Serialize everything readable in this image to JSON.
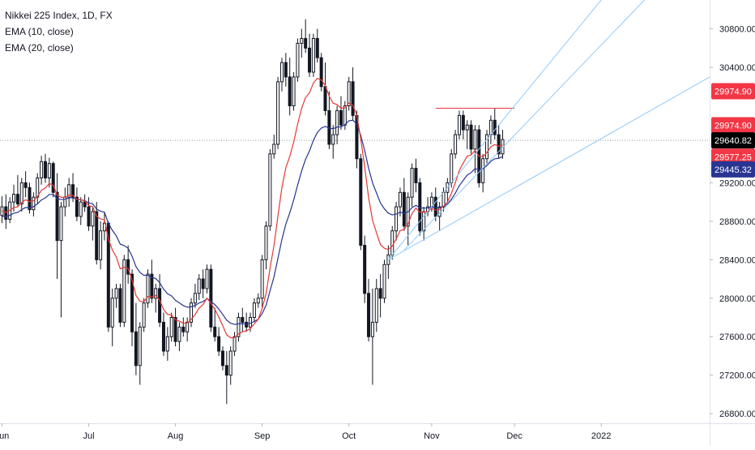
{
  "legend": {
    "title": "Nikkei 225 Index, 1D, FX",
    "ema10": "EMA (10, close)",
    "ema20": "EMA (20, close)"
  },
  "colors": {
    "up_fill": "#ffffff",
    "down_fill": "#131722",
    "candle_outline": "#131722",
    "ema10": "#e53935",
    "ema20": "#283593",
    "trendline": "#90caf9",
    "resistance": "#f23645",
    "last_price_bg": "#000000",
    "red_tag_bg": "#f23645",
    "blue_tag_bg": "#283593"
  },
  "price_tags": [
    {
      "name": "resistance-tag-1",
      "label": "29974.90",
      "value": 29974.9,
      "color": "#f23645",
      "offset": -1
    },
    {
      "name": "resistance-tag-2",
      "label": "29974.90",
      "value": 29974.9,
      "color": "#f23645",
      "offset": 1
    },
    {
      "name": "last-price-tag",
      "label": "29640.82",
      "value": 29640.82,
      "color": "#000000",
      "offset": 0
    },
    {
      "name": "ema10-tag",
      "label": "29577.25",
      "value": 29577.25,
      "color": "#f23645",
      "offset": 0.6
    },
    {
      "name": "ema20-tag",
      "label": "29445.32",
      "value": 29445.32,
      "color": "#283593",
      "offset": 0.6
    }
  ],
  "chart_data": {
    "type": "candlestick",
    "title": "Nikkei 225 Index, 1D, FX",
    "ylim": [
      26700,
      31100
    ],
    "y_ticks": [
      26800,
      27200,
      27600,
      28000,
      28400,
      28800,
      29200,
      30400,
      30800
    ],
    "y_tick_labels": [
      "26800.00",
      "27200.00",
      "27600.00",
      "28000.00",
      "28400.00",
      "28800.00",
      "29200.00",
      "30400.00",
      "30800.00"
    ],
    "x_ticks": [
      {
        "label": "Jun",
        "bar": 0
      },
      {
        "label": "Jul",
        "bar": 22
      },
      {
        "label": "Aug",
        "bar": 44
      },
      {
        "label": "Sep",
        "bar": 66
      },
      {
        "label": "Oct",
        "bar": 88
      },
      {
        "label": "Nov",
        "bar": 109
      },
      {
        "label": "Dec",
        "bar": 130
      },
      {
        "label": "2022",
        "bar": 152
      }
    ],
    "bar_range": [
      -0.5,
      179.5
    ],
    "candles": [
      [
        28860,
        29060,
        28780,
        28950
      ],
      [
        28950,
        29080,
        28720,
        28820
      ],
      [
        28820,
        29050,
        28780,
        29000
      ],
      [
        29000,
        29180,
        28900,
        29080
      ],
      [
        29080,
        29280,
        28950,
        28980
      ],
      [
        28980,
        29250,
        28900,
        29200
      ],
      [
        29200,
        29320,
        29050,
        29150
      ],
      [
        29150,
        29200,
        28880,
        28920
      ],
      [
        28920,
        29100,
        28850,
        29050
      ],
      [
        29050,
        29300,
        28980,
        29250
      ],
      [
        29250,
        29480,
        29180,
        29420
      ],
      [
        29420,
        29500,
        29200,
        29250
      ],
      [
        29250,
        29460,
        29150,
        29400
      ],
      [
        29400,
        29420,
        29050,
        29100
      ],
      [
        29100,
        29300,
        28200,
        28600
      ],
      [
        28600,
        29000,
        27800,
        28950
      ],
      [
        28950,
        29150,
        28850,
        29050
      ],
      [
        29050,
        29250,
        28950,
        29180
      ],
      [
        29180,
        29300,
        29000,
        29050
      ],
      [
        29050,
        29150,
        28800,
        28850
      ],
      [
        28850,
        29050,
        28760,
        29000
      ],
      [
        29000,
        29080,
        28900,
        28950
      ],
      [
        28950,
        29050,
        28700,
        28750
      ],
      [
        28750,
        28950,
        28600,
        28900
      ],
      [
        28900,
        29000,
        28350,
        28400
      ],
      [
        28400,
        28800,
        28300,
        28700
      ],
      [
        28700,
        28900,
        28600,
        28780
      ],
      [
        28780,
        28800,
        27650,
        27700
      ],
      [
        27700,
        28100,
        27500,
        28000
      ],
      [
        28000,
        28150,
        27900,
        28100
      ],
      [
        28100,
        28150,
        27700,
        27750
      ],
      [
        27750,
        28450,
        27700,
        28400
      ],
      [
        28400,
        28550,
        28150,
        28250
      ],
      [
        28250,
        28300,
        27500,
        27650
      ],
      [
        27650,
        27950,
        27200,
        27300
      ],
      [
        27300,
        27750,
        27100,
        27700
      ],
      [
        27700,
        28000,
        27650,
        27950
      ],
      [
        27950,
        28300,
        27900,
        28250
      ],
      [
        28250,
        28400,
        27950,
        28000
      ],
      [
        28000,
        28150,
        27850,
        28100
      ],
      [
        28100,
        28250,
        27700,
        27750
      ],
      [
        27750,
        27850,
        27400,
        27450
      ],
      [
        27450,
        27700,
        27350,
        27600
      ],
      [
        27600,
        27850,
        27550,
        27800
      ],
      [
        27800,
        27900,
        27500,
        27550
      ],
      [
        27550,
        27750,
        27450,
        27700
      ],
      [
        27700,
        27800,
        27600,
        27650
      ],
      [
        27650,
        27800,
        27550,
        27750
      ],
      [
        27750,
        28000,
        27700,
        27950
      ],
      [
        27950,
        28150,
        27900,
        28050
      ],
      [
        28050,
        28250,
        27980,
        28200
      ],
      [
        28200,
        28300,
        28000,
        28100
      ],
      [
        28100,
        28350,
        28050,
        28300
      ],
      [
        28300,
        28350,
        27650,
        27700
      ],
      [
        27700,
        27900,
        27550,
        27600
      ],
      [
        27600,
        27700,
        27400,
        27450
      ],
      [
        27450,
        27500,
        27250,
        27300
      ],
      [
        27300,
        27450,
        26900,
        27200
      ],
      [
        27200,
        27500,
        27100,
        27450
      ],
      [
        27450,
        27650,
        27400,
        27600
      ],
      [
        27600,
        27850,
        27550,
        27800
      ],
      [
        27800,
        27900,
        27650,
        27750
      ],
      [
        27750,
        27850,
        27650,
        27700
      ],
      [
        27700,
        27850,
        27650,
        27800
      ],
      [
        27800,
        28000,
        27750,
        27950
      ],
      [
        27950,
        28050,
        27900,
        28000
      ],
      [
        28000,
        28450,
        27900,
        28400
      ],
      [
        28400,
        28800,
        28300,
        28750
      ],
      [
        28750,
        29550,
        28700,
        29500
      ],
      [
        29500,
        29700,
        29450,
        29600
      ],
      [
        29600,
        30300,
        29550,
        30250
      ],
      [
        30250,
        30500,
        30150,
        30450
      ],
      [
        30450,
        30550,
        30200,
        30300
      ],
      [
        30300,
        30500,
        29900,
        30000
      ],
      [
        30000,
        30350,
        29950,
        30300
      ],
      [
        30300,
        30700,
        30250,
        30650
      ],
      [
        30650,
        30800,
        30500,
        30700
      ],
      [
        30700,
        30900,
        30550,
        30600
      ],
      [
        30600,
        30750,
        30300,
        30350
      ],
      [
        30350,
        30750,
        30300,
        30700
      ],
      [
        30700,
        30800,
        30450,
        30500
      ],
      [
        30500,
        30550,
        30150,
        30200
      ],
      [
        30200,
        30450,
        29900,
        29950
      ],
      [
        29950,
        30150,
        29550,
        29600
      ],
      [
        29600,
        29800,
        29450,
        29700
      ],
      [
        29700,
        30000,
        29600,
        29950
      ],
      [
        29950,
        30100,
        29750,
        29800
      ],
      [
        29800,
        30050,
        29750,
        30000
      ],
      [
        30000,
        30300,
        29950,
        30250
      ],
      [
        30250,
        30400,
        29850,
        29900
      ],
      [
        29900,
        29950,
        29350,
        29450
      ],
      [
        29450,
        29500,
        28500,
        28550
      ],
      [
        28550,
        28650,
        27950,
        28050
      ],
      [
        28050,
        28200,
        27550,
        27600
      ],
      [
        27600,
        28100,
        27100,
        27750
      ],
      [
        27750,
        28200,
        27650,
        28100
      ],
      [
        28100,
        28250,
        27800,
        28000
      ],
      [
        28000,
        28400,
        27950,
        28350
      ],
      [
        28350,
        28550,
        28200,
        28450
      ],
      [
        28450,
        28750,
        28400,
        28700
      ],
      [
        28700,
        29000,
        28600,
        28950
      ],
      [
        28950,
        29150,
        28850,
        29100
      ],
      [
        29100,
        29250,
        28700,
        28750
      ],
      [
        28750,
        29100,
        28550,
        29050
      ],
      [
        29050,
        29400,
        28950,
        29350
      ],
      [
        29350,
        29450,
        29100,
        29200
      ],
      [
        29200,
        29250,
        28650,
        28700
      ],
      [
        28700,
        28950,
        28600,
        28900
      ],
      [
        28900,
        29050,
        28850,
        28950
      ],
      [
        28950,
        29100,
        28900,
        29050
      ],
      [
        29050,
        29150,
        28800,
        28850
      ],
      [
        28850,
        29000,
        28700,
        28950
      ],
      [
        28950,
        29150,
        28900,
        29100
      ],
      [
        29100,
        29250,
        29000,
        29200
      ],
      [
        29200,
        29550,
        29150,
        29500
      ],
      [
        29500,
        29750,
        29450,
        29700
      ],
      [
        29700,
        29950,
        29650,
        29900
      ],
      [
        29900,
        29950,
        29650,
        29750
      ],
      [
        29750,
        29850,
        29550,
        29800
      ],
      [
        29800,
        29850,
        29500,
        29550
      ],
      [
        29550,
        29800,
        29300,
        29750
      ],
      [
        29750,
        29800,
        29150,
        29200
      ],
      [
        29200,
        29500,
        29100,
        29450
      ],
      [
        29450,
        29750,
        29400,
        29700
      ],
      [
        29700,
        29900,
        29600,
        29850
      ],
      [
        29850,
        29970,
        29650,
        29700
      ],
      [
        29700,
        29800,
        29450,
        29500
      ],
      [
        29500,
        29750,
        29450,
        29650
      ]
    ],
    "ema10_start": 28900,
    "ema20_start": 28840,
    "resistance_line": {
      "value": 29974.9,
      "from_bar": 110,
      "to_bar": 130
    },
    "fan_lines": [
      {
        "from": [
          98,
          28400
        ],
        "to": [
          160,
          31500
        ]
      },
      {
        "from": [
          102,
          28500
        ],
        "to": [
          170,
          31400
        ]
      },
      {
        "from": [
          98,
          28400
        ],
        "to": [
          179.5,
          30300
        ]
      }
    ]
  }
}
